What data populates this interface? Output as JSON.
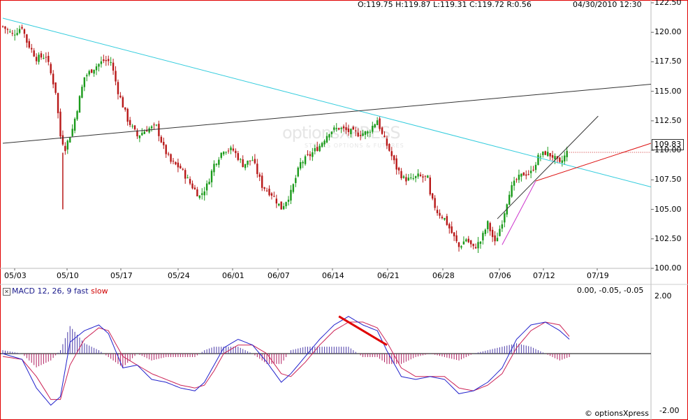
{
  "header": {
    "ohlc": "O:119.75  H:119.87  L:119.31  C:119.72  R:0.56",
    "datetime": "04/30/2010 12:30"
  },
  "watermark": {
    "brand": "optionsXPRESS",
    "sub": "STOCKS  OPTIONS & FUTURES"
  },
  "last_price": "109.83",
  "macd_header": {
    "prefix": "MACD 12, 26, 9 fast ",
    "slow": "slow",
    "values": "0.00, -0.05, -0.05"
  },
  "copyright": "© optionsXpress",
  "colors": {
    "up": "#1a9a1a",
    "down": "#b81818",
    "trend_cyan": "#33ccdd",
    "trend_black": "#333333",
    "trend_red": "#dd1111",
    "channel_purple": "#cc33cc",
    "macd_blue": "#2222cc",
    "signal_red": "#cc2255",
    "hist": "#883399"
  },
  "chart_data": [
    {
      "type": "candlestick",
      "ylim": [
        100.0,
        122.5
      ],
      "y_ticks": [
        "122.50",
        "120.00",
        "117.50",
        "115.00",
        "112.50",
        "110.00",
        "107.50",
        "105.00",
        "102.50",
        "100.00"
      ],
      "x_ticks": [
        "05/03",
        "05/10",
        "05/17",
        "05/24",
        "06/01",
        "06/07",
        "06/14",
        "06/21",
        "06/28",
        "07/06",
        "07/12",
        "07/19"
      ],
      "close_path": [
        [
          0,
          120.5
        ],
        [
          4,
          119.8
        ],
        [
          8,
          120.5
        ],
        [
          10,
          119.2
        ],
        [
          14,
          117.8
        ],
        [
          18,
          118.0
        ],
        [
          22,
          115.0
        ],
        [
          24,
          111.2
        ],
        [
          26,
          110.2
        ],
        [
          29,
          111.8
        ],
        [
          34,
          116.2
        ],
        [
          38,
          117.0
        ],
        [
          42,
          117.6
        ],
        [
          45,
          117.5
        ],
        [
          48,
          115.0
        ],
        [
          52,
          112.6
        ],
        [
          56,
          111.2
        ],
        [
          60,
          111.8
        ],
        [
          64,
          112.0
        ],
        [
          67,
          110.2
        ],
        [
          70,
          109.0
        ],
        [
          74,
          108.5
        ],
        [
          78,
          107.2
        ],
        [
          82,
          106.1
        ],
        [
          85,
          107.0
        ],
        [
          88,
          108.8
        ],
        [
          92,
          110.1
        ],
        [
          96,
          110.0
        ],
        [
          100,
          108.8
        ],
        [
          104,
          109.2
        ],
        [
          108,
          107.0
        ],
        [
          112,
          106.3
        ],
        [
          116,
          105.1
        ],
        [
          120,
          106.4
        ],
        [
          124,
          108.9
        ],
        [
          128,
          109.6
        ],
        [
          132,
          110.4
        ],
        [
          136,
          111.6
        ],
        [
          140,
          111.9
        ],
        [
          144,
          111.6
        ],
        [
          148,
          111.4
        ],
        [
          152,
          111.5
        ],
        [
          156,
          112.6
        ],
        [
          158,
          111.3
        ],
        [
          161,
          110.0
        ],
        [
          164,
          108.5
        ],
        [
          167,
          107.6
        ],
        [
          170,
          107.5
        ],
        [
          173,
          107.8
        ],
        [
          177,
          107.6
        ],
        [
          178,
          106.1
        ],
        [
          181,
          104.8
        ],
        [
          184,
          104.2
        ],
        [
          187,
          103.0
        ],
        [
          190,
          101.8
        ],
        [
          193,
          102.5
        ],
        [
          196,
          101.7
        ],
        [
          199,
          102.3
        ],
        [
          202,
          103.8
        ],
        [
          205,
          102.1
        ],
        [
          208,
          104.0
        ],
        [
          211,
          106.5
        ],
        [
          214,
          107.5
        ],
        [
          217,
          108.0
        ],
        [
          220,
          108.1
        ],
        [
          223,
          109.4
        ],
        [
          226,
          109.8
        ],
        [
          229,
          109.5
        ],
        [
          232,
          108.8
        ],
        [
          235,
          109.83
        ]
      ],
      "trendlines": [
        {
          "name": "cyan-resistance",
          "from": [
            0,
            121.2
          ],
          "to": [
            270,
            106.9
          ]
        },
        {
          "name": "black-long",
          "from": [
            0,
            110.6
          ],
          "to": [
            270,
            115.6
          ]
        },
        {
          "name": "red-support",
          "from": [
            222,
            107.4
          ],
          "to": [
            270,
            110.6
          ]
        },
        {
          "name": "channel-upper",
          "from": [
            206,
            104.2
          ],
          "to": [
            248,
            112.9
          ]
        },
        {
          "name": "channel-lower",
          "from": [
            208,
            102.0
          ],
          "to": [
            222,
            107.4
          ]
        }
      ]
    },
    {
      "type": "line",
      "name": "MACD",
      "ylim": [
        -2.0,
        2.0
      ],
      "y_ticks": [
        "2.00",
        "-2.00"
      ],
      "macd": [
        [
          0,
          0.0
        ],
        [
          8,
          -0.2
        ],
        [
          14,
          -1.2
        ],
        [
          20,
          -1.8
        ],
        [
          24,
          -1.5
        ],
        [
          28,
          0.4
        ],
        [
          34,
          0.8
        ],
        [
          40,
          1.0
        ],
        [
          44,
          0.7
        ],
        [
          50,
          -0.5
        ],
        [
          56,
          -0.4
        ],
        [
          62,
          -0.9
        ],
        [
          68,
          -1.0
        ],
        [
          74,
          -1.2
        ],
        [
          80,
          -1.3
        ],
        [
          84,
          -1.0
        ],
        [
          88,
          -0.4
        ],
        [
          92,
          0.2
        ],
        [
          98,
          0.5
        ],
        [
          104,
          0.3
        ],
        [
          110,
          -0.3
        ],
        [
          116,
          -1.0
        ],
        [
          120,
          -0.7
        ],
        [
          126,
          -0.1
        ],
        [
          132,
          0.5
        ],
        [
          138,
          1.0
        ],
        [
          144,
          1.3
        ],
        [
          150,
          1.0
        ],
        [
          156,
          0.8
        ],
        [
          160,
          0.1
        ],
        [
          166,
          -0.8
        ],
        [
          172,
          -0.9
        ],
        [
          178,
          -0.8
        ],
        [
          184,
          -0.9
        ],
        [
          190,
          -1.4
        ],
        [
          196,
          -1.3
        ],
        [
          202,
          -1.0
        ],
        [
          208,
          -0.5
        ],
        [
          214,
          0.5
        ],
        [
          220,
          1.0
        ],
        [
          226,
          1.1
        ],
        [
          232,
          0.8
        ],
        [
          236,
          0.5
        ]
      ],
      "signal": [
        [
          0,
          -0.1
        ],
        [
          8,
          -0.2
        ],
        [
          14,
          -0.8
        ],
        [
          20,
          -1.6
        ],
        [
          24,
          -1.6
        ],
        [
          28,
          -0.4
        ],
        [
          34,
          0.5
        ],
        [
          40,
          0.9
        ],
        [
          44,
          0.8
        ],
        [
          50,
          -0.1
        ],
        [
          56,
          -0.4
        ],
        [
          62,
          -0.7
        ],
        [
          68,
          -0.9
        ],
        [
          74,
          -1.1
        ],
        [
          80,
          -1.2
        ],
        [
          84,
          -1.1
        ],
        [
          88,
          -0.6
        ],
        [
          92,
          0.0
        ],
        [
          98,
          0.3
        ],
        [
          104,
          0.3
        ],
        [
          110,
          0.0
        ],
        [
          116,
          -0.7
        ],
        [
          120,
          -0.8
        ],
        [
          126,
          -0.3
        ],
        [
          132,
          0.3
        ],
        [
          138,
          0.8
        ],
        [
          144,
          1.1
        ],
        [
          150,
          1.1
        ],
        [
          156,
          0.9
        ],
        [
          160,
          0.4
        ],
        [
          166,
          -0.5
        ],
        [
          172,
          -0.8
        ],
        [
          178,
          -0.8
        ],
        [
          184,
          -0.8
        ],
        [
          190,
          -1.2
        ],
        [
          196,
          -1.3
        ],
        [
          202,
          -1.1
        ],
        [
          208,
          -0.7
        ],
        [
          214,
          0.2
        ],
        [
          220,
          0.8
        ],
        [
          226,
          1.1
        ],
        [
          232,
          1.0
        ],
        [
          236,
          0.6
        ]
      ],
      "annotation_line": [
        [
          140,
          1.3
        ],
        [
          160,
          0.3
        ]
      ]
    }
  ]
}
